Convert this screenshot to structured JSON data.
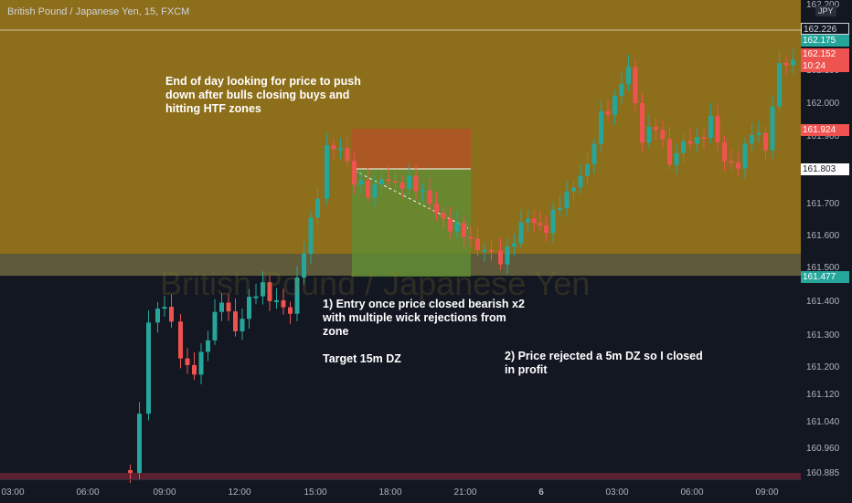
{
  "chart": {
    "symbol": "British Pound / Japanese Yen, 15, FXCM",
    "watermark": "British Pound / Japanese Yen",
    "currency": "JPY",
    "price_ticks": [
      "162.200",
      "162.100",
      "162.000",
      "161.900",
      "161.800",
      "161.700",
      "161.600",
      "161.500",
      "161.400",
      "161.300",
      "161.200",
      "161.120",
      "161.040",
      "160.960",
      "160.885"
    ],
    "time_ticks": [
      "03:00",
      "06:00",
      "09:00",
      "12:00",
      "15:00",
      "18:00",
      "21:00",
      "6",
      "03:00",
      "06:00",
      "09:00"
    ],
    "price_labels": [
      {
        "text": "162.226",
        "kind": "line"
      },
      {
        "text": "162.175",
        "kind": "green"
      },
      {
        "text": "162.152",
        "kind": "red"
      },
      {
        "text": "10:24",
        "kind": "red"
      },
      {
        "text": "161.924",
        "kind": "red"
      },
      {
        "text": "161.803",
        "kind": "white"
      },
      {
        "text": "161.477",
        "kind": "green"
      }
    ],
    "colors": {
      "up": "#26a69a",
      "down": "#ef5350",
      "zone": "#a07a1c",
      "background": "#131722"
    }
  },
  "annotations": {
    "note1": "End of day looking for price to push\ndown after bulls closing buys and\nhitting HTF zones",
    "note2": "1) Entry once price closed bearish x2\nwith multiple wick rejections from\nzone\n\nTarget 15m DZ",
    "note3": "2) Price rejected a 5m DZ so I closed\nin profit"
  }
}
